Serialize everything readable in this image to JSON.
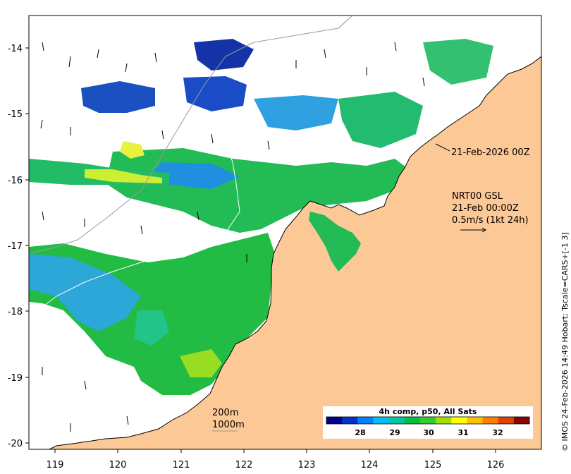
{
  "map": {
    "x_ticks": [
      "119",
      "120",
      "121",
      "122",
      "123",
      "124",
      "125",
      "126"
    ],
    "y_ticks": [
      "-14",
      "-15",
      "-16",
      "-17",
      "-18",
      "-19",
      "-20"
    ],
    "colors": {
      "land": "#fcc896",
      "coast": "#000000",
      "isobath": "#9a9a9a",
      "frame": "#000000"
    }
  },
  "annotations": {
    "date_label": "21-Feb-2026 00Z",
    "product_line1": "NRT00 GSL",
    "product_line2": "21-Feb 00:00Z",
    "product_line3": "0.5m/s (1kt 24h)",
    "contour_200": "200m",
    "contour_1000": "1000m"
  },
  "colorbar": {
    "title": "4h comp, p50, All Sats",
    "ticks": [
      "28",
      "29",
      "30",
      "31",
      "32"
    ],
    "colors": [
      "#00008b",
      "#0033cc",
      "#0080ff",
      "#00bfff",
      "#00c8a0",
      "#00c040",
      "#33cc33",
      "#a0e000",
      "#ffff00",
      "#ffc000",
      "#ff8000",
      "#e04000",
      "#8b0000"
    ]
  },
  "credit": "© IMOS 24-Feb-2026 14:49 Hobart; Tscale=CARS+[-1 3]"
}
